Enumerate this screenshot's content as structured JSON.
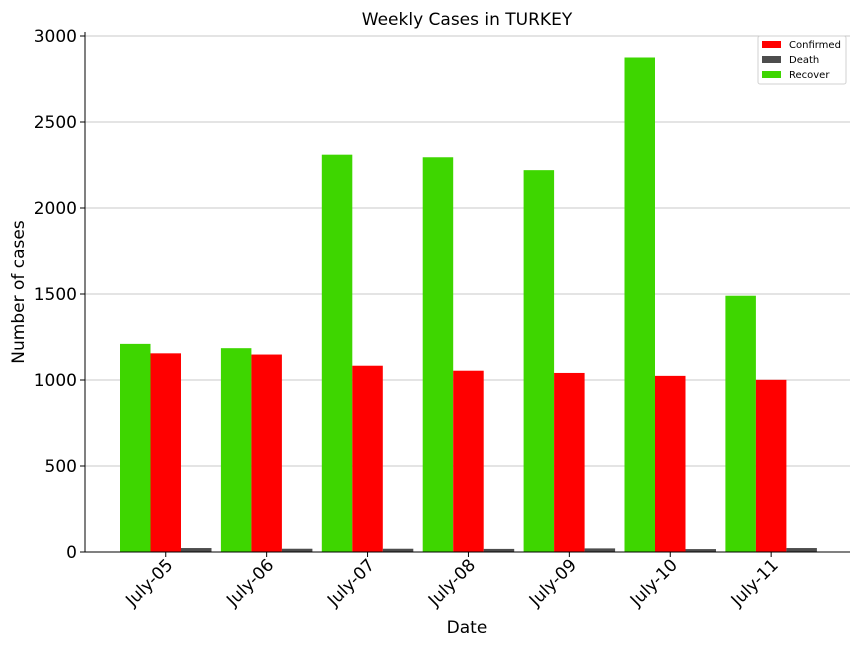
{
  "chart_data": {
    "type": "bar",
    "title": "Weekly Cases in TURKEY",
    "xlabel": "Date",
    "ylabel": "Number of cases",
    "categories": [
      "July-05",
      "July-06",
      "July-07",
      "July-08",
      "July-09",
      "July-10",
      "July-11"
    ],
    "series": [
      {
        "name": "Recover",
        "color": "#3ed600",
        "values": [
          1210,
          1185,
          2310,
          2295,
          2220,
          2875,
          1490
        ]
      },
      {
        "name": "Confirmed",
        "color": "#ff0000",
        "values": [
          1155,
          1148,
          1083,
          1054,
          1041,
          1024,
          1001
        ]
      },
      {
        "name": "Death",
        "color": "#4d4d4d",
        "values": [
          23,
          19,
          19,
          18,
          21,
          17,
          23
        ]
      }
    ],
    "legend_order": [
      "Confirmed",
      "Death",
      "Recover"
    ],
    "y_ticks": [
      0,
      500,
      1000,
      1500,
      2000,
      2500,
      3000
    ],
    "ylim": [
      0,
      3000
    ],
    "grid": "horizontal",
    "legend_position": "top-right"
  }
}
